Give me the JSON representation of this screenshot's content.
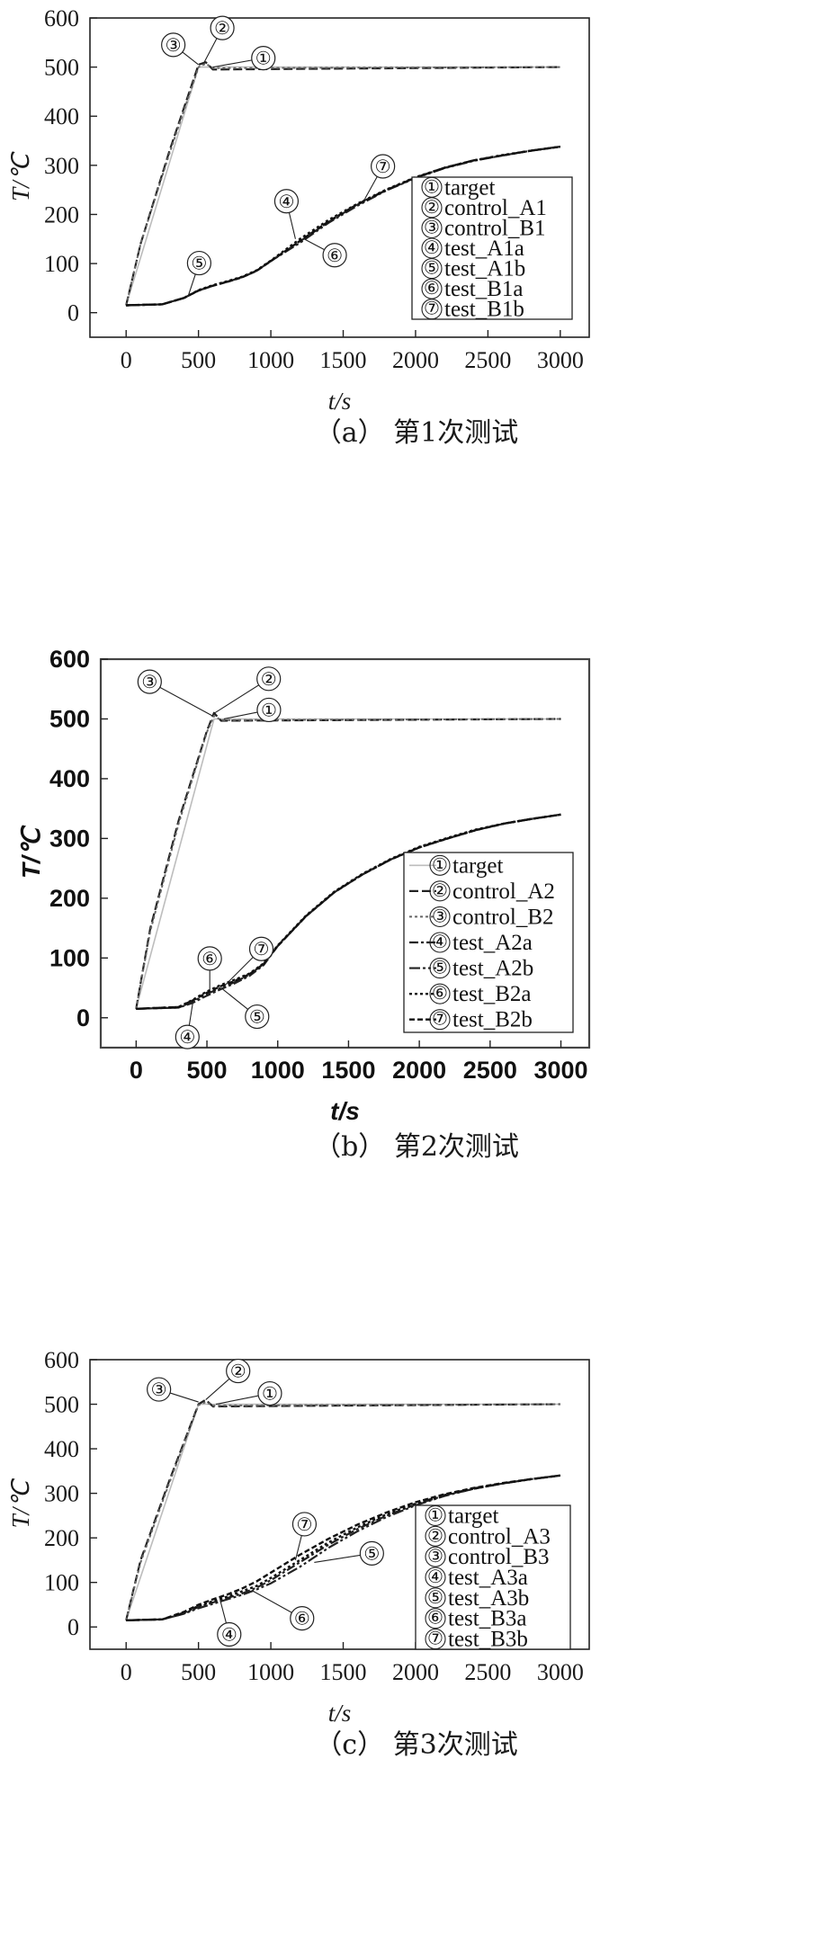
{
  "chart_data": [
    {
      "type": "line",
      "caption": "（a） 第1次测试",
      "xlabel": "t/s",
      "ylabel": "T/℃",
      "xlim": [
        -250,
        3200
      ],
      "ylim": [
        -50,
        600
      ],
      "xticks": [
        0,
        500,
        1000,
        1500,
        2000,
        2500,
        3000
      ],
      "yticks": [
        0,
        100,
        200,
        300,
        400,
        500,
        600
      ],
      "legend_position": "lower-right",
      "series": [
        {
          "name": "target",
          "marker": "①",
          "x": [
            0,
            500,
            3000
          ],
          "y": [
            15,
            500,
            500
          ]
        },
        {
          "name": "control_A1",
          "marker": "②",
          "x": [
            0,
            100,
            300,
            500,
            550,
            600,
            3000
          ],
          "y": [
            15,
            140,
            330,
            505,
            510,
            495,
            500
          ]
        },
        {
          "name": "control_B1",
          "marker": "③",
          "x": [
            0,
            100,
            300,
            500,
            550,
            600,
            3000
          ],
          "y": [
            15,
            140,
            325,
            500,
            507,
            498,
            500
          ]
        },
        {
          "name": "test_A1a",
          "marker": "④",
          "x": [
            0,
            250,
            400,
            500,
            600,
            700,
            800,
            900,
            1000,
            1200,
            1400,
            1600,
            1800,
            2000,
            2200,
            2400,
            2600,
            2800,
            3000
          ],
          "y": [
            15,
            17,
            30,
            45,
            55,
            63,
            72,
            85,
            105,
            145,
            185,
            220,
            250,
            275,
            295,
            310,
            320,
            330,
            338
          ]
        },
        {
          "name": "test_A1b",
          "marker": "⑤",
          "x": [
            0,
            250,
            400,
            500,
            600,
            700,
            800,
            900,
            1000,
            1200,
            1400,
            1600,
            1800,
            2000,
            2200,
            2400,
            2600,
            2800,
            3000
          ],
          "y": [
            15,
            17,
            30,
            45,
            55,
            63,
            72,
            85,
            105,
            142,
            183,
            218,
            249,
            274,
            294,
            309,
            320,
            330,
            338
          ]
        },
        {
          "name": "test_B1a",
          "marker": "⑥",
          "x": [
            0,
            250,
            400,
            500,
            600,
            700,
            800,
            900,
            1000,
            1200,
            1400,
            1600,
            1800,
            2000,
            2200,
            2400,
            2600,
            2800,
            3000
          ],
          "y": [
            15,
            17,
            30,
            46,
            56,
            64,
            73,
            86,
            106,
            150,
            189,
            222,
            251,
            276,
            295,
            310,
            321,
            330,
            338
          ]
        },
        {
          "name": "test_B1b",
          "marker": "⑦",
          "x": [
            0,
            250,
            400,
            500,
            600,
            700,
            800,
            900,
            1000,
            1200,
            1400,
            1600,
            1800,
            2000,
            2200,
            2400,
            2600,
            2800,
            3000
          ],
          "y": [
            15,
            17,
            30,
            45,
            55,
            63,
            72,
            85,
            105,
            146,
            186,
            221,
            250,
            275,
            295,
            310,
            320,
            330,
            338
          ]
        }
      ],
      "callouts": [
        {
          "marker": "③",
          "at": [
            500,
            505
          ]
        },
        {
          "marker": "②",
          "at": [
            540,
            510
          ]
        },
        {
          "marker": "①",
          "at": [
            600,
            500
          ]
        },
        {
          "marker": "④",
          "at": [
            1170,
            150
          ]
        },
        {
          "marker": "⑤",
          "at": [
            430,
            35
          ]
        },
        {
          "marker": "⑥",
          "at": [
            1230,
            150
          ]
        },
        {
          "marker": "⑦",
          "at": [
            1650,
            232
          ]
        }
      ]
    },
    {
      "type": "line",
      "caption": "（b） 第2次测试",
      "xlabel": "t/s",
      "ylabel": "T/℃",
      "xlim": [
        -250,
        3200
      ],
      "ylim": [
        -50,
        600
      ],
      "xticks": [
        0,
        500,
        1000,
        1500,
        2000,
        2500,
        3000
      ],
      "yticks": [
        0,
        100,
        200,
        300,
        400,
        500,
        600
      ],
      "legend_position": "lower-right",
      "series": [
        {
          "name": "target",
          "marker": "①",
          "x": [
            0,
            550,
            3000
          ],
          "y": [
            15,
            500,
            500
          ]
        },
        {
          "name": "control_A2",
          "marker": "②",
          "x": [
            0,
            100,
            300,
            500,
            550,
            600,
            3000
          ],
          "y": [
            15,
            150,
            330,
            480,
            510,
            497,
            500
          ]
        },
        {
          "name": "control_B2",
          "marker": "③",
          "x": [
            0,
            100,
            300,
            500,
            550,
            600,
            3000
          ],
          "y": [
            15,
            145,
            325,
            478,
            505,
            498,
            500
          ]
        },
        {
          "name": "test_A2a",
          "marker": "④",
          "x": [
            0,
            300,
            400,
            500,
            600,
            700,
            800,
            900,
            1000,
            1200,
            1400,
            1600,
            1800,
            2000,
            2200,
            2400,
            2600,
            2800,
            3000
          ],
          "y": [
            15,
            17,
            25,
            37,
            48,
            58,
            70,
            88,
            120,
            170,
            210,
            240,
            265,
            285,
            300,
            314,
            325,
            333,
            340
          ]
        },
        {
          "name": "test_A2b",
          "marker": "⑤",
          "x": [
            0,
            300,
            400,
            500,
            600,
            700,
            800,
            900,
            1000,
            1200,
            1400,
            1600,
            1800,
            2000,
            2200,
            2400,
            2600,
            2800,
            3000
          ],
          "y": [
            15,
            17,
            27,
            40,
            50,
            60,
            72,
            90,
            120,
            170,
            210,
            240,
            265,
            285,
            300,
            314,
            325,
            333,
            340
          ]
        },
        {
          "name": "test_B2a",
          "marker": "⑥",
          "x": [
            0,
            300,
            400,
            500,
            600,
            700,
            800,
            900,
            1000,
            1200,
            1400,
            1600,
            1800,
            2000,
            2200,
            2400,
            2600,
            2800,
            3000
          ],
          "y": [
            15,
            18,
            30,
            44,
            55,
            64,
            74,
            91,
            121,
            171,
            211,
            241,
            266,
            286,
            301,
            315,
            325,
            333,
            340
          ]
        },
        {
          "name": "test_B2b",
          "marker": "⑦",
          "x": [
            0,
            300,
            400,
            500,
            600,
            700,
            800,
            900,
            1000,
            1200,
            1400,
            1600,
            1800,
            2000,
            2200,
            2400,
            2600,
            2800,
            3000
          ],
          "y": [
            15,
            18,
            29,
            42,
            53,
            62,
            73,
            90,
            120,
            170,
            210,
            240,
            265,
            285,
            300,
            314,
            325,
            333,
            340
          ]
        }
      ],
      "callouts": [
        {
          "marker": "③",
          "at": [
            540,
            505
          ]
        },
        {
          "marker": "②",
          "at": [
            555,
            510
          ]
        },
        {
          "marker": "①",
          "at": [
            620,
            500
          ]
        },
        {
          "marker": "④",
          "at": [
            400,
            25
          ]
        },
        {
          "marker": "⑤",
          "at": [
            600,
            50
          ]
        },
        {
          "marker": "⑥",
          "at": [
            520,
            45
          ]
        },
        {
          "marker": "⑦",
          "at": [
            630,
            55
          ]
        }
      ]
    },
    {
      "type": "line",
      "caption": "（c） 第3次测试",
      "xlabel": "t/s",
      "ylabel": "T/℃",
      "xlim": [
        -250,
        3200
      ],
      "ylim": [
        -50,
        600
      ],
      "xticks": [
        0,
        500,
        1000,
        1500,
        2000,
        2500,
        3000
      ],
      "yticks": [
        0,
        100,
        200,
        300,
        400,
        500,
        600
      ],
      "legend_position": "lower-right",
      "series": [
        {
          "name": "target",
          "marker": "①",
          "x": [
            0,
            500,
            3000
          ],
          "y": [
            15,
            500,
            500
          ]
        },
        {
          "name": "control_A3",
          "marker": "②",
          "x": [
            0,
            100,
            300,
            500,
            550,
            600,
            3000
          ],
          "y": [
            15,
            150,
            330,
            500,
            510,
            495,
            500
          ]
        },
        {
          "name": "control_B3",
          "marker": "③",
          "x": [
            0,
            100,
            300,
            500,
            550,
            600,
            3000
          ],
          "y": [
            15,
            145,
            325,
            498,
            505,
            497,
            500
          ]
        },
        {
          "name": "test_A3a",
          "marker": "④",
          "x": [
            0,
            250,
            400,
            500,
            600,
            700,
            800,
            900,
            1000,
            1200,
            1400,
            1600,
            1800,
            2000,
            2200,
            2400,
            2600,
            2800,
            3000
          ],
          "y": [
            15,
            17,
            30,
            45,
            55,
            65,
            75,
            88,
            105,
            145,
            185,
            220,
            250,
            275,
            295,
            310,
            322,
            332,
            340
          ]
        },
        {
          "name": "test_A3b",
          "marker": "⑤",
          "x": [
            0,
            250,
            400,
            500,
            600,
            700,
            800,
            900,
            1000,
            1200,
            1400,
            1600,
            1800,
            2000,
            2200,
            2400,
            2600,
            2800,
            3000
          ],
          "y": [
            15,
            17,
            30,
            42,
            52,
            62,
            72,
            84,
            98,
            135,
            178,
            215,
            247,
            273,
            294,
            310,
            322,
            332,
            340
          ]
        },
        {
          "name": "test_B3a",
          "marker": "⑥",
          "x": [
            0,
            250,
            400,
            500,
            600,
            700,
            800,
            900,
            1000,
            1200,
            1400,
            1600,
            1800,
            2000,
            2200,
            2400,
            2600,
            2800,
            3000
          ],
          "y": [
            15,
            17,
            32,
            47,
            58,
            68,
            80,
            92,
            110,
            150,
            190,
            224,
            253,
            277,
            296,
            311,
            322,
            332,
            340
          ]
        },
        {
          "name": "test_B3b",
          "marker": "⑦",
          "x": [
            0,
            250,
            400,
            500,
            600,
            700,
            800,
            900,
            1000,
            1200,
            1400,
            1600,
            1800,
            2000,
            2200,
            2400,
            2600,
            2800,
            3000
          ],
          "y": [
            15,
            17,
            34,
            50,
            62,
            73,
            86,
            102,
            122,
            162,
            198,
            230,
            257,
            280,
            298,
            312,
            323,
            332,
            340
          ]
        }
      ],
      "callouts": [
        {
          "marker": "③",
          "at": [
            500,
            505
          ]
        },
        {
          "marker": "②",
          "at": [
            550,
            510
          ]
        },
        {
          "marker": "①",
          "at": [
            620,
            500
          ]
        },
        {
          "marker": "④",
          "at": [
            650,
            60
          ]
        },
        {
          "marker": "⑤",
          "at": [
            1300,
            145
          ]
        },
        {
          "marker": "⑥",
          "at": [
            880,
            80
          ]
        },
        {
          "marker": "⑦",
          "at": [
            1170,
            150
          ]
        }
      ]
    }
  ]
}
